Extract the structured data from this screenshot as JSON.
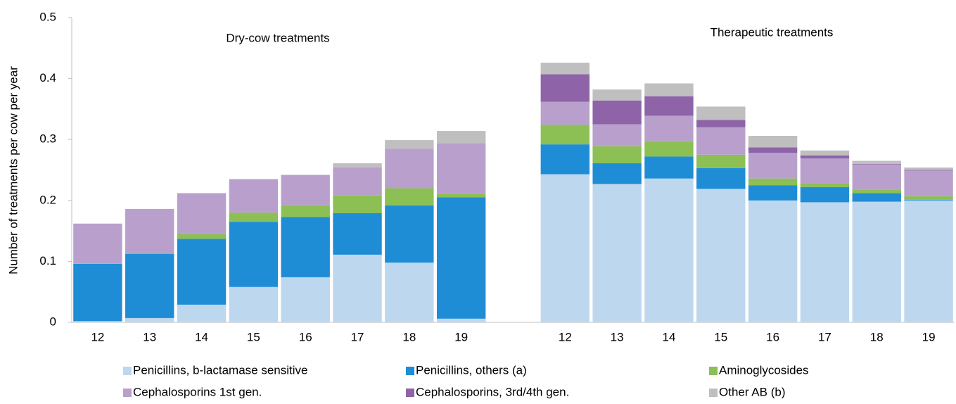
{
  "chart_data": {
    "type": "stacked_bar",
    "y_label": "Number of treatments per cow per year",
    "annotations": [
      "Dry-cow treatments",
      "Therapeutic treatments"
    ],
    "categories": [
      "12",
      "13",
      "14",
      "15",
      "16",
      "17",
      "18",
      "19",
      null,
      "12",
      "13",
      "14",
      "15",
      "16",
      "17",
      "18",
      "19"
    ],
    "ylim": [
      0,
      0.5
    ],
    "yticks": [
      0,
      0.1,
      0.2,
      0.3,
      0.4,
      0.5
    ],
    "grid": false,
    "legend": "bottom",
    "series": [
      {
        "name": "Penicillins, b-lactamase sensitive",
        "color": "#bdd7ee",
        "values": [
          0.002,
          0.007,
          0.029,
          0.058,
          0.074,
          0.111,
          0.098,
          0.006,
          null,
          0.243,
          0.227,
          0.236,
          0.219,
          0.2,
          0.197,
          0.198,
          0.2
        ]
      },
      {
        "name": "Penicillins, others (a)",
        "color": "#1f8dd6",
        "values": [
          0.094,
          0.105,
          0.108,
          0.107,
          0.099,
          0.068,
          0.094,
          0.199,
          null,
          0.049,
          0.034,
          0.036,
          0.034,
          0.025,
          0.025,
          0.014,
          0.001
        ]
      },
      {
        "name": "Aminoglycosides",
        "color": "#8cbf54",
        "values": [
          0,
          0.002,
          0.008,
          0.015,
          0.019,
          0.029,
          0.028,
          0.006,
          null,
          0.032,
          0.028,
          0.025,
          0.022,
          0.011,
          0.006,
          0.006,
          0.006
        ]
      },
      {
        "name": "Cephalosporins 1st gen.",
        "color": "#b9a0cc",
        "values": [
          0.066,
          0.072,
          0.067,
          0.055,
          0.05,
          0.046,
          0.065,
          0.083,
          null,
          0.038,
          0.036,
          0.042,
          0.045,
          0.042,
          0.041,
          0.041,
          0.042
        ]
      },
      {
        "name": "Cephalosporins, 3rd/4th gen.",
        "color": "#8e63a8",
        "values": [
          0,
          0,
          0,
          0,
          0,
          0,
          0,
          0,
          null,
          0.045,
          0.039,
          0.032,
          0.012,
          0.009,
          0.005,
          0.001,
          0.001
        ]
      },
      {
        "name": "Other AB (b)",
        "color": "#bfbfbf",
        "values": [
          0,
          0,
          0,
          0,
          0,
          0.007,
          0.014,
          0.02,
          null,
          0.019,
          0.018,
          0.021,
          0.022,
          0.019,
          0.008,
          0.005,
          0.004
        ]
      }
    ]
  }
}
